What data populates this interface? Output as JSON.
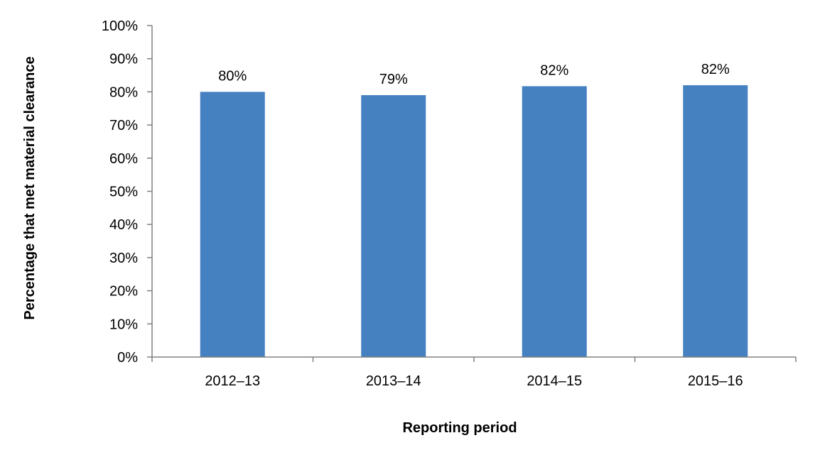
{
  "chart_data": {
    "type": "bar",
    "categories": [
      "2012–13",
      "2013–14",
      "2014–15",
      "2015–16"
    ],
    "values": [
      80,
      79,
      81.7,
      82
    ],
    "data_labels": [
      "80%",
      "79%",
      "82%",
      "82%"
    ],
    "xlabel": "Reporting period",
    "ylabel": "Percentage that met material clearance",
    "ylim": [
      0,
      100
    ],
    "yticks": [
      0,
      10,
      20,
      30,
      40,
      50,
      60,
      70,
      80,
      90,
      100
    ],
    "ytick_labels": [
      "0%",
      "10%",
      "20%",
      "30%",
      "40%",
      "50%",
      "60%",
      "70%",
      "80%",
      "90%",
      "100%"
    ],
    "grid": false,
    "legend": "none",
    "bar_color": "#4580C0",
    "axis_color": "#808080"
  }
}
